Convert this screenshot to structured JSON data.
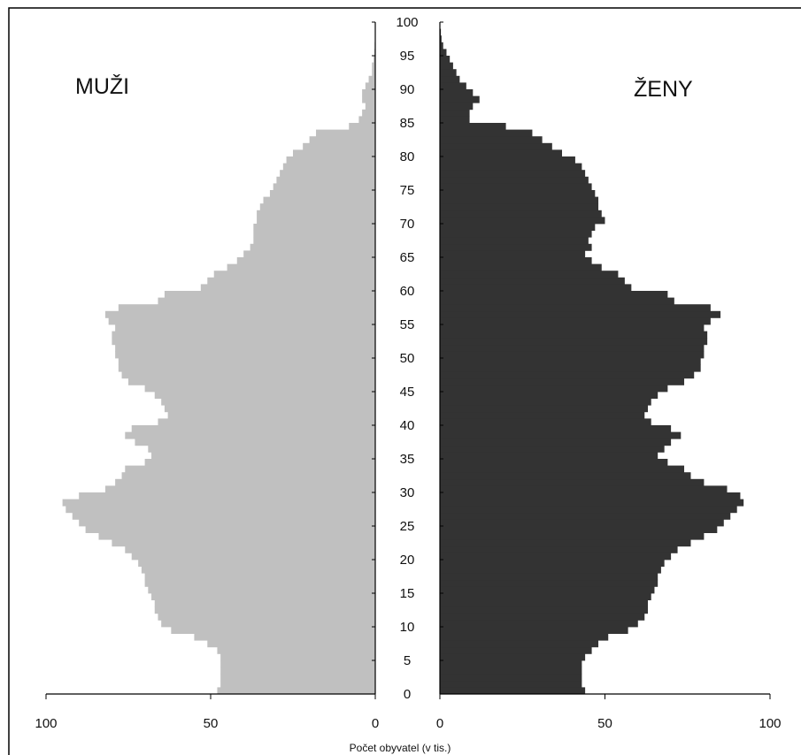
{
  "chart_data": {
    "type": "population-pyramid",
    "left_label": "MUŽI",
    "right_label": "ŽENY",
    "xlabel": "Počet obyvatel (v tis.)",
    "xlim": [
      0,
      100
    ],
    "x_ticks_left": [
      "100",
      "50",
      "0"
    ],
    "x_ticks_right": [
      "0",
      "50",
      "100"
    ],
    "age_ticks": [
      "0",
      "5",
      "10",
      "15",
      "20",
      "25",
      "30",
      "35",
      "40",
      "45",
      "50",
      "55",
      "60",
      "65",
      "70",
      "75",
      "80",
      "85",
      "90",
      "95",
      "100"
    ],
    "ages": [
      0,
      1,
      2,
      3,
      4,
      5,
      6,
      7,
      8,
      9,
      10,
      11,
      12,
      13,
      14,
      15,
      16,
      17,
      18,
      19,
      20,
      21,
      22,
      23,
      24,
      25,
      26,
      27,
      28,
      29,
      30,
      31,
      32,
      33,
      34,
      35,
      36,
      37,
      38,
      39,
      40,
      41,
      42,
      43,
      44,
      45,
      46,
      47,
      48,
      49,
      50,
      51,
      52,
      53,
      54,
      55,
      56,
      57,
      58,
      59,
      60,
      61,
      62,
      63,
      64,
      65,
      66,
      67,
      68,
      69,
      70,
      71,
      72,
      73,
      74,
      75,
      76,
      77,
      78,
      79,
      80,
      81,
      82,
      83,
      84,
      85,
      86,
      87,
      88,
      89,
      90,
      91,
      92,
      93,
      94,
      95,
      96,
      97,
      98,
      99,
      100
    ],
    "colors": {
      "men": "#c0c0c0",
      "women": "#333333"
    },
    "series": [
      {
        "name": "MUŽI",
        "values": [
          48,
          47,
          47,
          47,
          47,
          47,
          48,
          51,
          55,
          62,
          65,
          66,
          67,
          67,
          68,
          69,
          70,
          70,
          71,
          72,
          74,
          76,
          80,
          84,
          88,
          90,
          92,
          94,
          95,
          90,
          82,
          79,
          77,
          76,
          70,
          68,
          69,
          73,
          76,
          74,
          66,
          63,
          64,
          65,
          67,
          70,
          75,
          77,
          78,
          78,
          79,
          79,
          80,
          80,
          79,
          81,
          82,
          78,
          66,
          64,
          53,
          51,
          49,
          45,
          42,
          40,
          38,
          37,
          37,
          37,
          36,
          36,
          35,
          34,
          32,
          31,
          30,
          29,
          28,
          27,
          25,
          22,
          20,
          18,
          8,
          5,
          4,
          3,
          4,
          4,
          3,
          2,
          1,
          1,
          0.5,
          0.3,
          0.2,
          0.1,
          0,
          0,
          0
        ]
      },
      {
        "name": "ŽENY",
        "values": [
          44,
          43,
          43,
          43,
          43,
          44,
          46,
          48,
          51,
          57,
          60,
          62,
          63,
          63,
          64,
          65,
          66,
          66,
          67,
          68,
          70,
          72,
          76,
          80,
          84,
          86,
          88,
          90,
          92,
          91,
          87,
          80,
          76,
          74,
          69,
          66,
          68,
          70,
          73,
          70,
          64,
          62,
          63,
          64,
          66,
          69,
          74,
          77,
          79,
          79,
          80,
          80,
          81,
          81,
          80,
          82,
          85,
          82,
          71,
          69,
          58,
          56,
          54,
          49,
          46,
          44,
          46,
          45,
          46,
          47,
          50,
          49,
          48,
          48,
          47,
          46,
          45,
          44,
          43,
          41,
          37,
          34,
          31,
          28,
          20,
          9,
          9,
          10,
          12,
          10,
          8,
          6,
          5,
          4,
          3,
          2,
          1,
          0.5,
          0.3,
          0.1,
          0
        ]
      }
    ]
  }
}
